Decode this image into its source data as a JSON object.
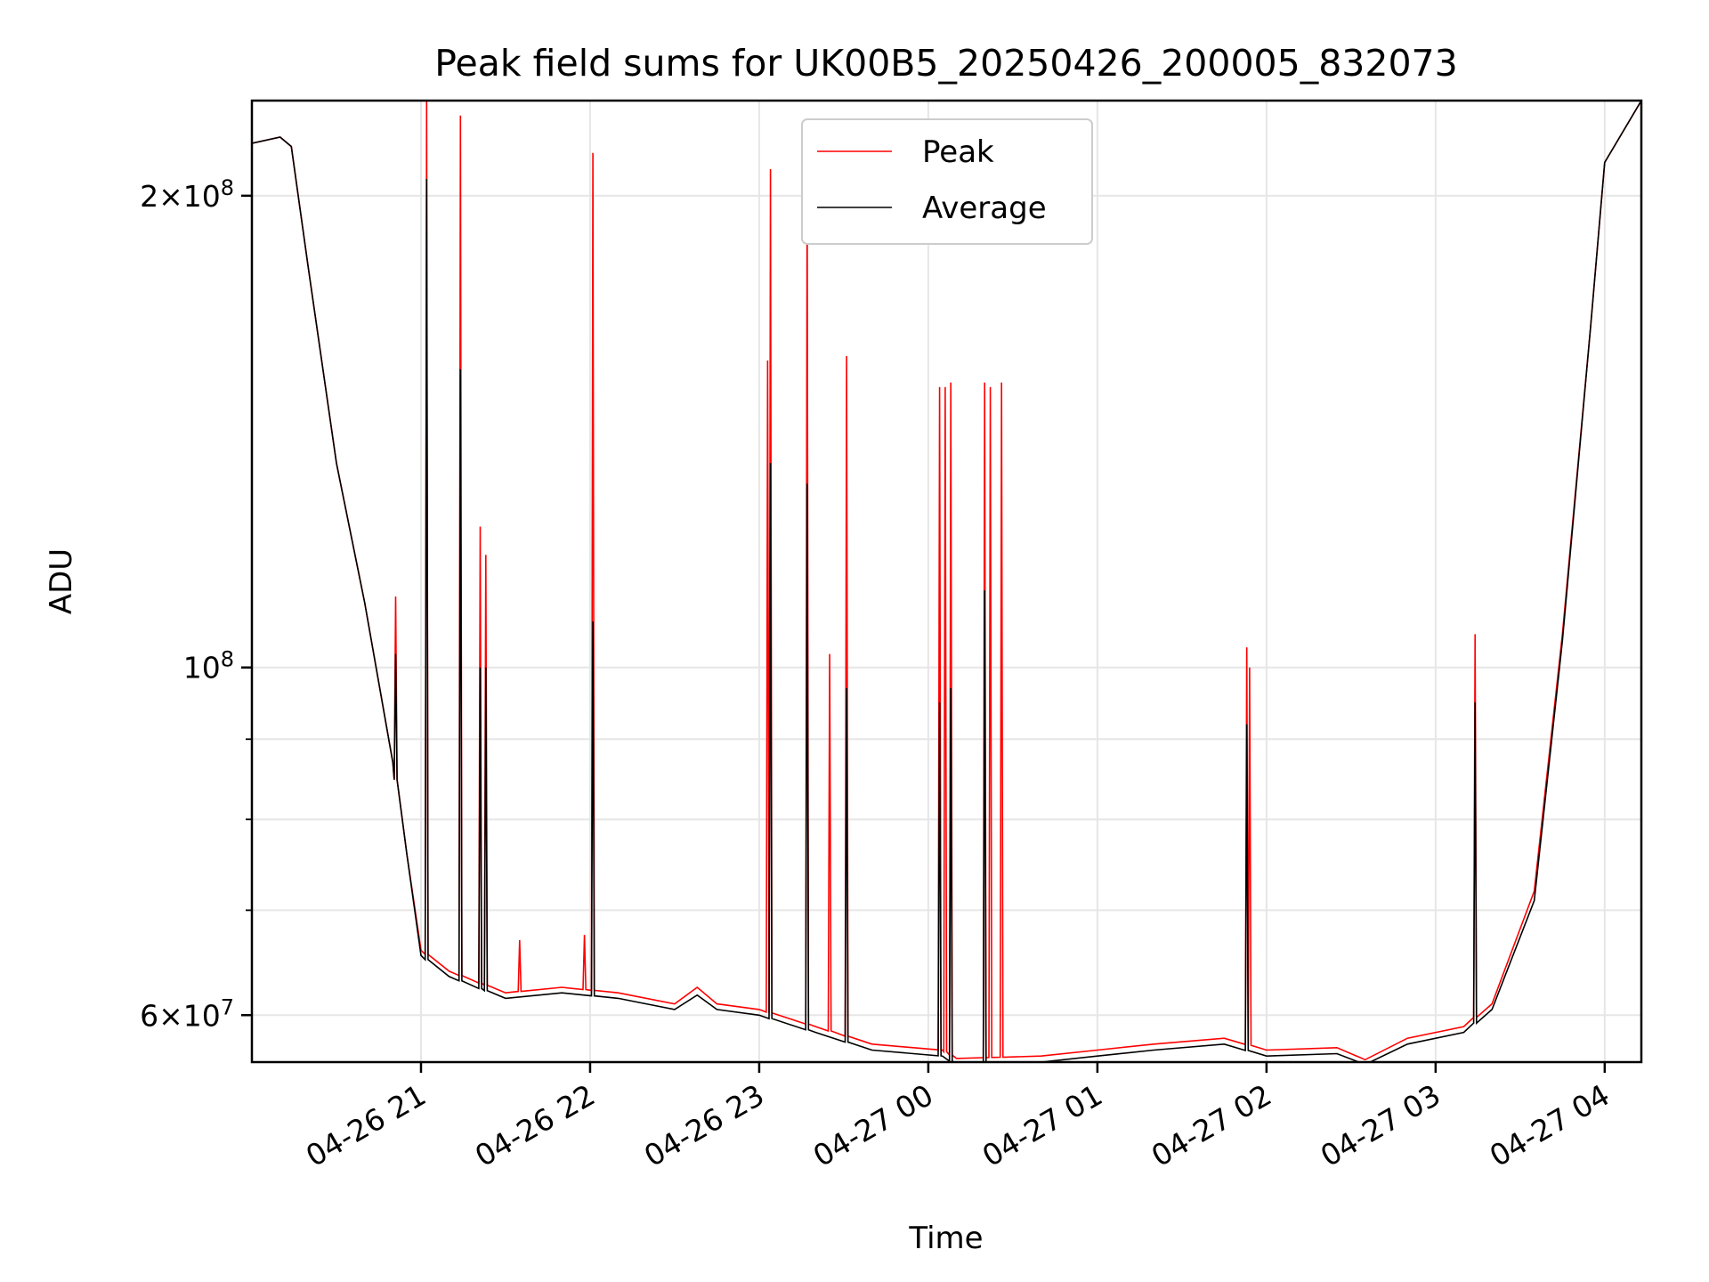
{
  "chart_data": {
    "type": "line",
    "title": "Peak field sums for UK00B5_20250426_200005_832073",
    "xlabel": "Time",
    "ylabel": "ADU",
    "y_scale": "log",
    "ylim": [
      56000000,
      230000000
    ],
    "xlim": [
      "2025-04-26 20:00",
      "2025-04-27 04:13"
    ],
    "x_ticks": [
      "04-26 21",
      "04-26 22",
      "04-26 23",
      "04-27 00",
      "04-27 01",
      "04-27 02",
      "04-27 03",
      "04-27 04"
    ],
    "y_ticks": [
      {
        "value": 60000000,
        "base": "6",
        "exp": "7"
      },
      {
        "value": 100000000,
        "base": "",
        "exp": "8"
      },
      {
        "value": 200000000,
        "base": "2",
        "exp": "8"
      }
    ],
    "grid": true,
    "legend_position": "top-center",
    "series": [
      {
        "name": "Peak",
        "color": "#ff0000",
        "baseline": [
          [
            "2025-04-26 20:00",
            216000000
          ],
          [
            "2025-04-26 20:10",
            218000000
          ],
          [
            "2025-04-26 20:14",
            215000000
          ],
          [
            "2025-04-26 20:20",
            180000000
          ],
          [
            "2025-04-26 20:30",
            135000000
          ],
          [
            "2025-04-26 20:40",
            110000000
          ],
          [
            "2025-04-26 20:50",
            87000000
          ],
          [
            "2025-04-26 20:55",
            76000000
          ],
          [
            "2025-04-26 21:00",
            66000000
          ],
          [
            "2025-04-26 21:10",
            64000000
          ],
          [
            "2025-04-26 21:30",
            62000000
          ],
          [
            "2025-04-26 21:50",
            62500000
          ],
          [
            "2025-04-26 22:10",
            62000000
          ],
          [
            "2025-04-26 22:30",
            61000000
          ],
          [
            "2025-04-26 22:38",
            62500000
          ],
          [
            "2025-04-26 22:45",
            61000000
          ],
          [
            "2025-04-26 23:00",
            60500000
          ],
          [
            "2025-04-26 23:20",
            59000000
          ],
          [
            "2025-04-26 23:40",
            57500000
          ],
          [
            "2025-04-27 00:05",
            57000000
          ],
          [
            "2025-04-27 00:10",
            56300000
          ],
          [
            "2025-04-27 00:40",
            56500000
          ],
          [
            "2025-04-27 01:00",
            57000000
          ],
          [
            "2025-04-27 01:20",
            57500000
          ],
          [
            "2025-04-27 01:45",
            58000000
          ],
          [
            "2025-04-27 02:00",
            57000000
          ],
          [
            "2025-04-27 02:25",
            57200000
          ],
          [
            "2025-04-27 02:35",
            56200000
          ],
          [
            "2025-04-27 02:50",
            58000000
          ],
          [
            "2025-04-27 03:10",
            59000000
          ],
          [
            "2025-04-27 03:20",
            61000000
          ],
          [
            "2025-04-27 03:35",
            72000000
          ],
          [
            "2025-04-27 03:45",
            105000000
          ],
          [
            "2025-04-27 03:55",
            165000000
          ],
          [
            "2025-04-27 04:00",
            210000000
          ],
          [
            "2025-04-27 04:13",
            230000000
          ]
        ],
        "spikes": [
          [
            "2025-04-26 20:51",
            111000000
          ],
          [
            "2025-04-26 21:02",
            230000000
          ],
          [
            "2025-04-26 21:14",
            225000000
          ],
          [
            "2025-04-26 21:21",
            123000000
          ],
          [
            "2025-04-26 21:23",
            118000000
          ],
          [
            "2025-04-26 21:35",
            67000000
          ],
          [
            "2025-04-26 21:58",
            67500000
          ],
          [
            "2025-04-26 22:01",
            213000000
          ],
          [
            "2025-04-26 23:03",
            157000000
          ],
          [
            "2025-04-26 23:04",
            208000000
          ],
          [
            "2025-04-26 23:17",
            205000000
          ],
          [
            "2025-04-26 23:25",
            102000000
          ],
          [
            "2025-04-26 23:31",
            158000000
          ],
          [
            "2025-04-27 00:04",
            151000000
          ],
          [
            "2025-04-27 00:06",
            151000000
          ],
          [
            "2025-04-27 00:08",
            152000000
          ],
          [
            "2025-04-27 00:20",
            152000000
          ],
          [
            "2025-04-27 00:22",
            151000000
          ],
          [
            "2025-04-27 00:26",
            152000000
          ],
          [
            "2025-04-27 01:53",
            103000000
          ],
          [
            "2025-04-27 01:54",
            100000000
          ],
          [
            "2025-04-27 03:14",
            105000000
          ]
        ]
      },
      {
        "name": "Average",
        "color": "#000000",
        "baseline": [
          [
            "2025-04-26 20:00",
            216000000
          ],
          [
            "2025-04-26 20:10",
            218000000
          ],
          [
            "2025-04-26 20:14",
            215000000
          ],
          [
            "2025-04-26 20:20",
            180000000
          ],
          [
            "2025-04-26 20:30",
            135000000
          ],
          [
            "2025-04-26 20:40",
            110000000
          ],
          [
            "2025-04-26 20:50",
            87000000
          ],
          [
            "2025-04-26 20:55",
            76000000
          ],
          [
            "2025-04-26 21:00",
            65500000
          ],
          [
            "2025-04-26 21:10",
            63500000
          ],
          [
            "2025-04-26 21:30",
            61500000
          ],
          [
            "2025-04-26 21:50",
            62000000
          ],
          [
            "2025-04-26 22:10",
            61500000
          ],
          [
            "2025-04-26 22:30",
            60500000
          ],
          [
            "2025-04-26 22:38",
            61800000
          ],
          [
            "2025-04-26 22:45",
            60500000
          ],
          [
            "2025-04-26 23:00",
            60000000
          ],
          [
            "2025-04-26 23:20",
            58500000
          ],
          [
            "2025-04-26 23:40",
            57000000
          ],
          [
            "2025-04-27 00:05",
            56500000
          ],
          [
            "2025-04-27 00:10",
            55800000
          ],
          [
            "2025-04-27 00:40",
            56000000
          ],
          [
            "2025-04-27 01:00",
            56500000
          ],
          [
            "2025-04-27 01:20",
            57000000
          ],
          [
            "2025-04-27 01:45",
            57500000
          ],
          [
            "2025-04-27 02:00",
            56500000
          ],
          [
            "2025-04-27 02:25",
            56700000
          ],
          [
            "2025-04-27 02:35",
            55800000
          ],
          [
            "2025-04-27 02:50",
            57500000
          ],
          [
            "2025-04-27 03:10",
            58500000
          ],
          [
            "2025-04-27 03:20",
            60500000
          ],
          [
            "2025-04-27 03:35",
            71000000
          ],
          [
            "2025-04-27 03:45",
            104000000
          ],
          [
            "2025-04-27 03:55",
            165000000
          ],
          [
            "2025-04-27 04:00",
            210000000
          ],
          [
            "2025-04-27 04:13",
            230000000
          ]
        ],
        "spikes": [
          [
            "2025-04-26 20:51",
            102000000
          ],
          [
            "2025-04-26 21:02",
            205000000
          ],
          [
            "2025-04-26 21:14",
            155000000
          ],
          [
            "2025-04-26 21:21",
            100000000
          ],
          [
            "2025-04-26 21:23",
            100000000
          ],
          [
            "2025-04-26 22:01",
            107000000
          ],
          [
            "2025-04-26 23:04",
            135000000
          ],
          [
            "2025-04-26 23:17",
            131000000
          ],
          [
            "2025-04-26 23:31",
            97000000
          ],
          [
            "2025-04-27 00:04",
            95000000
          ],
          [
            "2025-04-27 00:08",
            97000000
          ],
          [
            "2025-04-27 00:20",
            112000000
          ],
          [
            "2025-04-27 01:53",
            92000000
          ],
          [
            "2025-04-27 03:14",
            95000000
          ]
        ]
      }
    ]
  }
}
